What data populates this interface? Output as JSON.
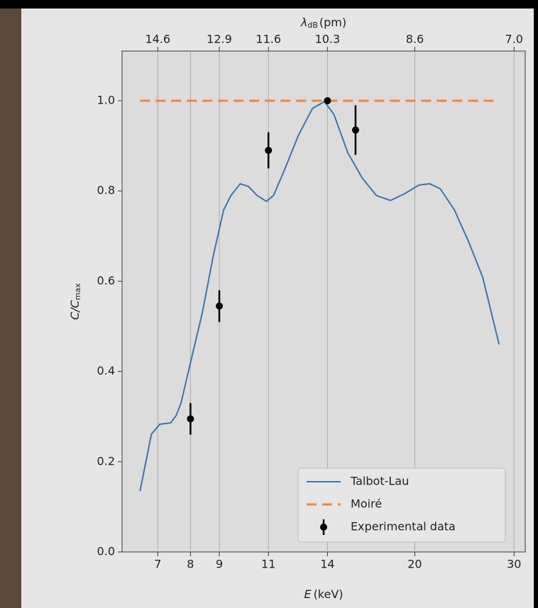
{
  "chart_data": {
    "type": "line",
    "xlabel": "E",
    "xlabel_unit": "(keV)",
    "ylabel": "C/C",
    "ylabel_sub": "max",
    "x2label": "λ",
    "x2label_sub": "dB",
    "x2label_unit": "(pm)",
    "xscale": "log",
    "xlim": [
      6.05,
      31.4
    ],
    "ylim": [
      0,
      1.11
    ],
    "xticks": [
      7,
      8,
      9,
      11,
      14,
      20,
      30
    ],
    "x2ticks": [
      {
        "value": 7,
        "label": "14.6"
      },
      {
        "value": 9,
        "label": "12.9"
      },
      {
        "value": 11,
        "label": "11.6"
      },
      {
        "value": 14,
        "label": "10.3"
      },
      {
        "value": 20,
        "label": "8.6"
      },
      {
        "value": 30,
        "label": "7.0"
      }
    ],
    "yticks": [
      {
        "value": 0,
        "label": "0.0"
      },
      0.2,
      0.4,
      0.6,
      0.8,
      {
        "value": 1,
        "label": "1.0"
      }
    ],
    "grid": true,
    "legend": "lower right",
    "series": [
      {
        "name": "Talbot-Lau",
        "color": "#3b75af",
        "style": "solid",
        "x": [
          6.51,
          6.82,
          7.06,
          7.38,
          7.55,
          7.7,
          7.95,
          8.4,
          8.78,
          9.16,
          9.44,
          9.8,
          10.14,
          10.5,
          10.91,
          11.23,
          11.73,
          12.43,
          13.17,
          13.83,
          14.37,
          15.22,
          16.13,
          17.09,
          18.11,
          19.19,
          20.34,
          21.25,
          22.19,
          23.51,
          24.91,
          26.39,
          28.22
        ],
        "values": [
          0.135,
          0.261,
          0.283,
          0.286,
          0.303,
          0.331,
          0.405,
          0.531,
          0.656,
          0.758,
          0.79,
          0.816,
          0.81,
          0.79,
          0.777,
          0.79,
          0.845,
          0.923,
          0.983,
          0.998,
          0.97,
          0.884,
          0.829,
          0.79,
          0.779,
          0.794,
          0.813,
          0.816,
          0.805,
          0.758,
          0.688,
          0.609,
          0.46
        ]
      },
      {
        "name": "Moiré",
        "color": "#ef8636",
        "style": "dashed",
        "x": [
          6.51,
          28.22
        ],
        "values": [
          1.0,
          1.0
        ]
      },
      {
        "name": "Experimental data",
        "color": "#000000",
        "style": "errorbar",
        "x": [
          8,
          9,
          11,
          14,
          15.7
        ],
        "values": [
          0.295,
          0.545,
          0.89,
          1.0,
          0.935
        ],
        "errors": [
          0.035,
          0.035,
          0.04,
          0.0,
          0.055
        ]
      }
    ]
  }
}
